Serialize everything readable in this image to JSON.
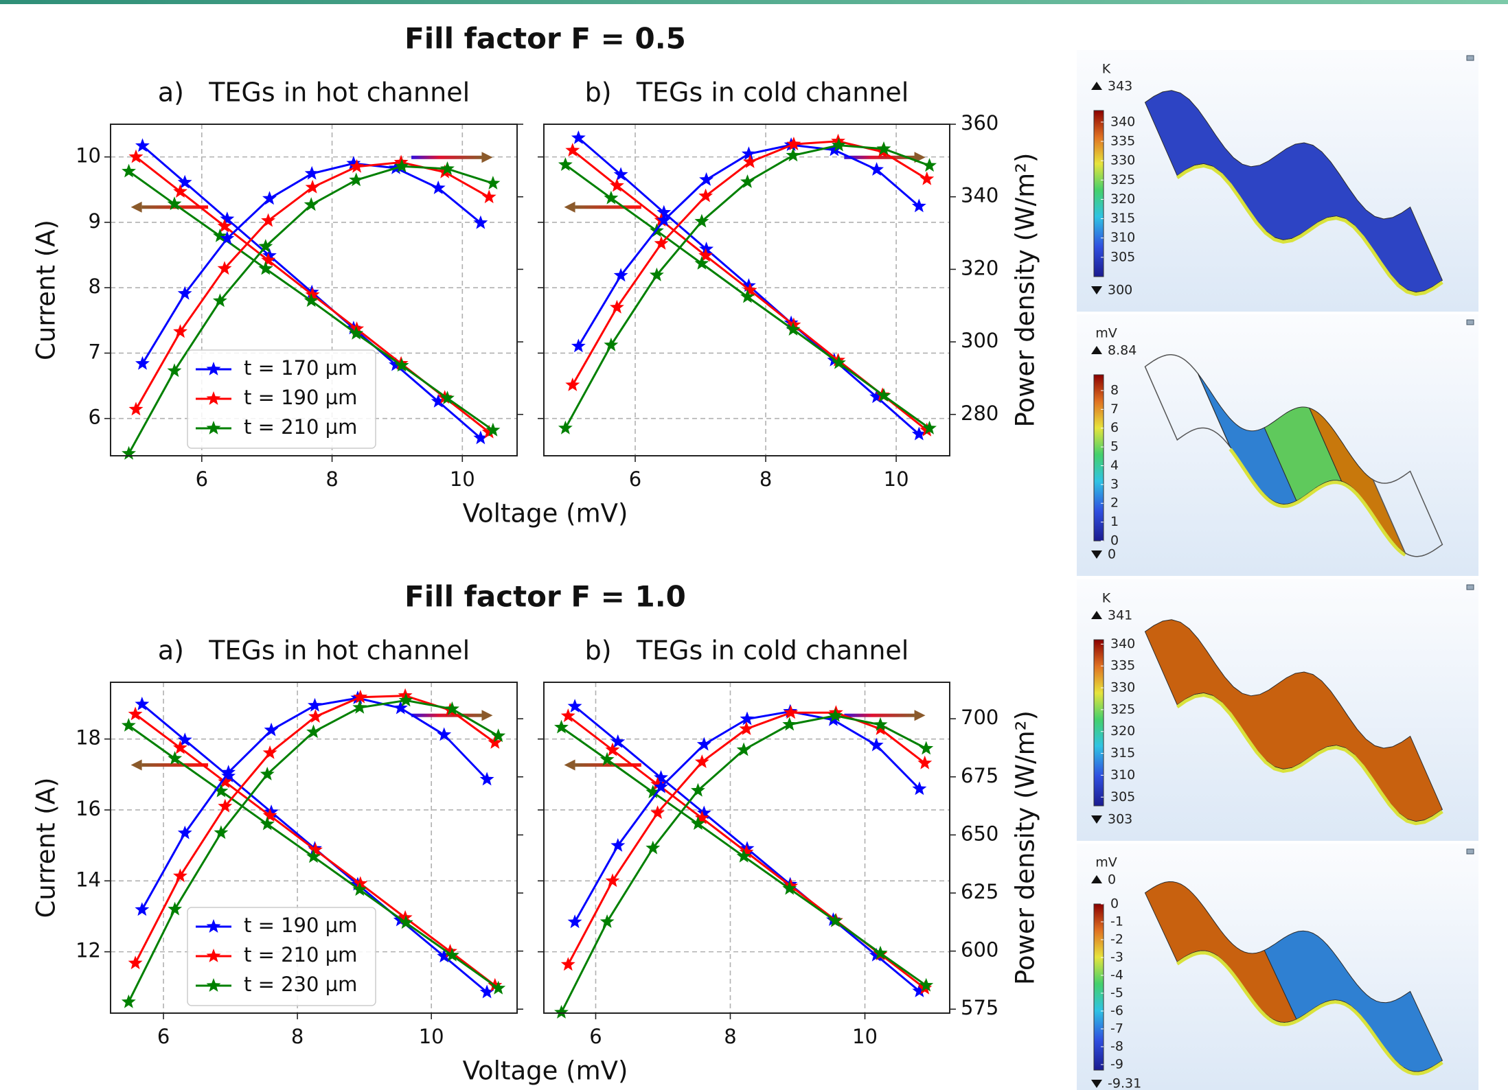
{
  "chart_data": [
    {
      "type": "line",
      "title": "a)   TEGs in hot channel",
      "ylabel": "Current (A)",
      "xlim": [
        4.6,
        10.84
      ],
      "xticks": [
        6,
        8,
        10
      ],
      "ylim": [
        5.43,
        10.5
      ],
      "yticks": [
        6,
        7,
        8,
        9,
        10
      ],
      "y2lim": [
        268.6,
        360
      ],
      "y2ticks": [
        280,
        300,
        320,
        340,
        360
      ],
      "grid": true,
      "legend": "lower left",
      "series": [
        {
          "name": "t = 170 µm",
          "color": "#0000ff",
          "x": [
            5.09,
            5.74,
            6.39,
            7.04,
            7.69,
            8.33,
            8.98,
            9.63,
            10.28
          ],
          "values": [
            10.17,
            9.61,
            9.05,
            8.49,
            7.93,
            7.38,
            6.82,
            6.26,
            5.7
          ]
        },
        {
          "name": "t = 190 µm",
          "color": "#ff0000",
          "x": [
            4.99,
            5.67,
            6.35,
            7.02,
            7.7,
            8.38,
            9.06,
            9.73,
            10.41
          ],
          "values": [
            10.0,
            9.47,
            8.94,
            8.42,
            7.89,
            7.37,
            6.84,
            6.32,
            5.79
          ]
        },
        {
          "name": "t = 210 µm",
          "color": "#008000",
          "x": [
            4.88,
            5.58,
            6.28,
            6.98,
            7.68,
            8.37,
            9.07,
            9.77,
            10.47
          ],
          "values": [
            9.78,
            9.28,
            8.79,
            8.29,
            7.8,
            7.3,
            6.81,
            6.31,
            5.82
          ]
        },
        {
          "color": "#0000ff",
          "axis": "y2",
          "x": [
            5.09,
            5.74,
            6.39,
            7.04,
            7.69,
            8.33,
            8.98,
            9.63,
            10.28
          ],
          "values": [
            294.0,
            313.3,
            328.5,
            339.5,
            346.4,
            349.2,
            347.9,
            342.4,
            332.8
          ]
        },
        {
          "color": "#ff0000",
          "axis": "y2",
          "x": [
            4.99,
            5.67,
            6.35,
            7.02,
            7.7,
            8.38,
            9.06,
            9.73,
            10.41
          ],
          "values": [
            281.4,
            302.8,
            320.2,
            333.4,
            342.6,
            348.3,
            349.5,
            346.8,
            339.9
          ]
        },
        {
          "color": "#008000",
          "axis": "y2",
          "x": [
            4.88,
            5.58,
            6.28,
            6.98,
            7.68,
            8.37,
            9.07,
            9.77,
            10.47
          ],
          "values": [
            269.2,
            292.0,
            311.3,
            326.3,
            337.8,
            344.6,
            348.4,
            347.7,
            343.7
          ]
        }
      ]
    },
    {
      "type": "line",
      "title": "b)   TEGs in cold channel",
      "y2label": "Power density (W/m²)",
      "xlim": [
        4.6,
        10.82
      ],
      "xticks": [
        6,
        8,
        10
      ],
      "ylim": [
        5.43,
        10.5
      ],
      "yticks": [
        6,
        7,
        8,
        9,
        10
      ],
      "y2lim": [
        268.6,
        360
      ],
      "y2ticks": [
        280,
        300,
        320,
        340,
        360
      ],
      "grid": true,
      "series": [
        {
          "color": "#0000ff",
          "x": [
            5.13,
            5.78,
            6.44,
            7.09,
            7.74,
            8.39,
            9.05,
            9.7,
            10.35
          ],
          "values": [
            10.29,
            9.73,
            9.15,
            8.59,
            8.03,
            7.46,
            6.89,
            6.33,
            5.76
          ]
        },
        {
          "color": "#ff0000",
          "x": [
            5.04,
            5.72,
            6.4,
            7.08,
            7.76,
            8.43,
            9.11,
            9.79,
            10.47
          ],
          "values": [
            10.1,
            9.56,
            9.03,
            8.49,
            7.96,
            7.43,
            6.89,
            6.36,
            5.82
          ]
        },
        {
          "color": "#008000",
          "x": [
            4.93,
            5.63,
            6.33,
            7.02,
            7.72,
            8.42,
            9.12,
            9.81,
            10.51
          ],
          "values": [
            9.88,
            9.37,
            8.87,
            8.37,
            7.86,
            7.36,
            6.85,
            6.35,
            5.85
          ]
        },
        {
          "color": "#0000ff",
          "axis": "y2",
          "x": [
            5.13,
            5.78,
            6.44,
            7.09,
            7.74,
            8.39,
            9.05,
            9.7,
            10.35
          ],
          "values": [
            298.8,
            318.3,
            333.5,
            344.7,
            351.8,
            354.3,
            352.9,
            347.5,
            337.4
          ]
        },
        {
          "color": "#ff0000",
          "axis": "y2",
          "x": [
            5.04,
            5.72,
            6.4,
            7.08,
            7.76,
            8.43,
            9.11,
            9.79,
            10.47
          ],
          "values": [
            288.1,
            309.5,
            327.1,
            340.2,
            349.6,
            354.5,
            355.3,
            352.4,
            344.9
          ]
        },
        {
          "color": "#008000",
          "axis": "y2",
          "x": [
            4.93,
            5.63,
            6.33,
            7.02,
            7.72,
            8.42,
            9.12,
            9.81,
            10.51
          ],
          "values": [
            276.2,
            299.1,
            318.4,
            333.2,
            344.1,
            351.4,
            354.2,
            353.2,
            348.6
          ]
        }
      ]
    },
    {
      "type": "line",
      "title": "a)   TEGs in hot channel",
      "ylabel": "Current (A)",
      "xlim": [
        5.21,
        11.28
      ],
      "xticks": [
        6,
        8,
        10
      ],
      "ylim": [
        10.27,
        19.6
      ],
      "yticks": [
        12,
        14,
        16,
        18
      ],
      "y2lim": [
        573.3,
        715.7
      ],
      "y2ticks": [
        575,
        600,
        625,
        650,
        675,
        700
      ],
      "grid": true,
      "legend": "lower left",
      "series": [
        {
          "name": "t = 190 µm",
          "color": "#0000ff",
          "x": [
            5.68,
            6.32,
            6.97,
            7.61,
            8.26,
            8.9,
            9.54,
            10.19,
            10.83
          ],
          "values": [
            18.98,
            17.97,
            16.95,
            15.94,
            14.91,
            13.9,
            12.89,
            11.87,
            10.86
          ]
        },
        {
          "name": "t = 210 µm",
          "color": "#ff0000",
          "x": [
            5.58,
            6.25,
            6.92,
            7.59,
            8.27,
            8.94,
            9.61,
            10.28,
            10.95
          ],
          "values": [
            18.7,
            17.75,
            16.79,
            15.84,
            14.87,
            13.92,
            12.96,
            12.01,
            11.05
          ]
        },
        {
          "name": "t = 230 µm",
          "color": "#008000",
          "x": [
            5.48,
            6.17,
            6.86,
            7.55,
            8.24,
            8.93,
            9.62,
            10.31,
            11.0
          ],
          "values": [
            18.38,
            17.45,
            16.53,
            15.6,
            14.68,
            13.75,
            12.82,
            11.9,
            10.97
          ]
        },
        {
          "color": "#0000ff",
          "axis": "y2",
          "x": [
            5.68,
            6.32,
            6.97,
            7.61,
            8.26,
            8.9,
            9.54,
            10.19,
            10.83
          ],
          "values": [
            617.8,
            650.8,
            676.9,
            695.1,
            705.7,
            708.9,
            704.6,
            693.1,
            673.9
          ]
        },
        {
          "color": "#ff0000",
          "axis": "y2",
          "x": [
            5.58,
            6.25,
            6.92,
            7.59,
            8.27,
            8.94,
            9.61,
            10.28,
            10.95
          ],
          "values": [
            594.8,
            632.3,
            662.3,
            685.3,
            700.9,
            709.3,
            709.9,
            703.7,
            689.7
          ]
        },
        {
          "color": "#008000",
          "axis": "y2",
          "x": [
            5.48,
            6.17,
            6.86,
            7.55,
            8.24,
            8.93,
            9.62,
            10.31,
            11.0
          ],
          "values": [
            578.1,
            618.0,
            650.9,
            676.1,
            694.3,
            704.8,
            707.9,
            704.2,
            692.6
          ]
        }
      ]
    },
    {
      "type": "line",
      "title": "b)   TEGs in cold channel",
      "y2label": "Power density (W/m²)",
      "xlim": [
        5.23,
        11.26
      ],
      "xticks": [
        6,
        8,
        10
      ],
      "ylim": [
        10.27,
        19.6
      ],
      "yticks": [
        12,
        14,
        16,
        18
      ],
      "y2lim": [
        573.3,
        715.7
      ],
      "y2ticks": [
        575,
        600,
        625,
        650,
        675,
        700
      ],
      "grid": true,
      "series": [
        {
          "color": "#0000ff",
          "x": [
            5.69,
            6.33,
            6.97,
            7.61,
            8.25,
            8.89,
            9.53,
            10.17,
            10.81
          ],
          "values": [
            18.92,
            17.92,
            16.91,
            15.91,
            14.91,
            13.9,
            12.9,
            11.9,
            10.89
          ]
        },
        {
          "color": "#ff0000",
          "x": [
            5.59,
            6.25,
            6.92,
            7.58,
            8.24,
            8.9,
            9.57,
            10.23,
            10.89
          ],
          "values": [
            18.65,
            17.69,
            16.72,
            15.77,
            14.81,
            13.85,
            12.88,
            11.93,
            10.97
          ]
        },
        {
          "color": "#008000",
          "x": [
            5.49,
            6.17,
            6.85,
            7.52,
            8.2,
            8.88,
            9.56,
            10.23,
            10.91
          ],
          "values": [
            18.33,
            17.42,
            16.5,
            15.61,
            14.69,
            13.78,
            12.87,
            11.96,
            11.05
          ]
        },
        {
          "color": "#0000ff",
          "axis": "y2",
          "x": [
            5.69,
            6.33,
            6.97,
            7.61,
            8.25,
            8.89,
            9.53,
            10.17,
            10.81
          ],
          "values": [
            612.5,
            645.4,
            670.6,
            688.9,
            699.9,
            703.1,
            699.5,
            688.6,
            669.8
          ]
        },
        {
          "color": "#ff0000",
          "axis": "y2",
          "x": [
            5.59,
            6.25,
            6.92,
            7.58,
            8.24,
            8.9,
            9.57,
            10.23,
            10.89
          ],
          "values": [
            594.2,
            630.2,
            659.5,
            681.4,
            695.6,
            702.6,
            702.6,
            695.6,
            680.9
          ]
        },
        {
          "color": "#008000",
          "axis": "y2",
          "x": [
            5.49,
            6.17,
            6.85,
            7.52,
            8.2,
            8.88,
            9.56,
            10.23,
            10.91
          ],
          "values": [
            573.6,
            612.6,
            644.3,
            669.1,
            686.6,
            697.5,
            701.3,
            697.4,
            687.2
          ]
        }
      ]
    }
  ],
  "figure": {
    "rows": [
      {
        "title": "Fill factor F = 0.5",
        "xlabel": "Voltage (mV)"
      },
      {
        "title": "Fill factor F = 1.0",
        "xlabel": "Voltage (mV)"
      }
    ],
    "colormaps": [
      {
        "unit": "K",
        "max": 343,
        "min": 300,
        "ticks": [
          340,
          335,
          330,
          325,
          320,
          315,
          310,
          305
        ]
      },
      {
        "unit": "mV",
        "max": 8.84,
        "min": 0,
        "ticks": [
          8,
          7,
          6,
          5,
          4,
          3,
          2,
          1,
          0
        ]
      },
      {
        "unit": "K",
        "max": 341,
        "min": 303,
        "ticks": [
          340,
          335,
          330,
          325,
          320,
          315,
          310,
          305
        ]
      },
      {
        "unit": "mV",
        "max": 0,
        "min": -9.31,
        "ticks": [
          0,
          -1,
          -2,
          -3,
          -4,
          -5,
          -6,
          -7,
          -8,
          -9
        ]
      }
    ]
  }
}
